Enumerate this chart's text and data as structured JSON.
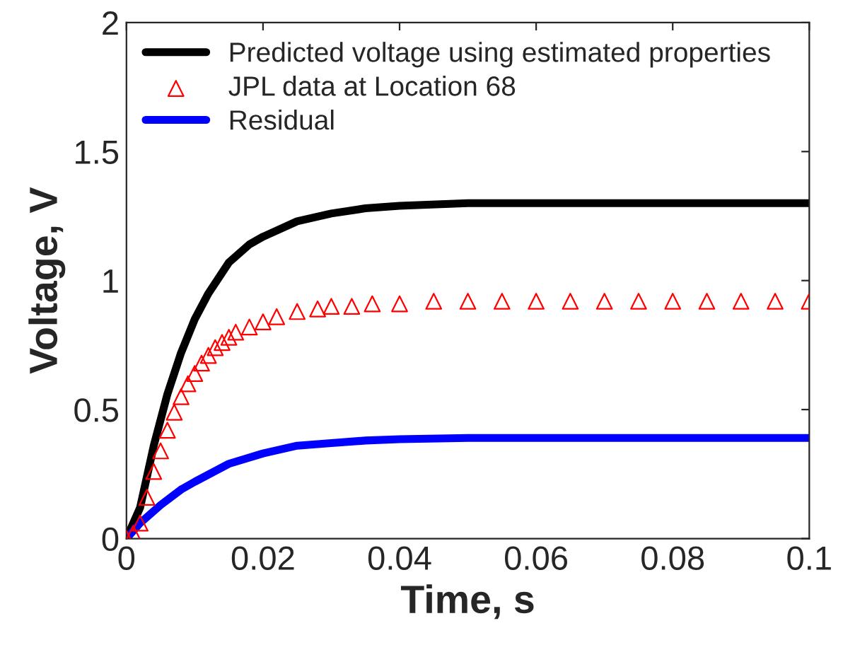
{
  "chart_data": {
    "type": "line",
    "xlabel": "Time, s",
    "ylabel": "Voltage, V",
    "xlim": [
      0,
      0.1
    ],
    "ylim": [
      0,
      2
    ],
    "xticks": [
      0,
      0.02,
      0.04,
      0.06,
      0.08,
      0.1
    ],
    "yticks": [
      0,
      0.5,
      1,
      1.5,
      2
    ],
    "legend": "top left",
    "series": [
      {
        "name": "Predicted voltage using estimated properties",
        "color": "#000000",
        "marker": "none",
        "x": [
          0,
          0.002,
          0.004,
          0.006,
          0.008,
          0.01,
          0.012,
          0.015,
          0.018,
          0.02,
          0.025,
          0.03,
          0.035,
          0.04,
          0.05,
          0.06,
          0.08,
          0.1
        ],
        "values": [
          0,
          0.12,
          0.36,
          0.56,
          0.72,
          0.85,
          0.95,
          1.07,
          1.14,
          1.17,
          1.23,
          1.26,
          1.28,
          1.29,
          1.3,
          1.3,
          1.3,
          1.3
        ]
      },
      {
        "name": "JPL data at Location 68",
        "color": "#ff0000",
        "type": "scatter",
        "marker": "triangle",
        "x": [
          0,
          0.001,
          0.002,
          0.003,
          0.004,
          0.005,
          0.006,
          0.007,
          0.008,
          0.009,
          0.01,
          0.011,
          0.012,
          0.013,
          0.014,
          0.015,
          0.016,
          0.018,
          0.02,
          0.022,
          0.025,
          0.028,
          0.03,
          0.033,
          0.036,
          0.04,
          0.045,
          0.05,
          0.055,
          0.06,
          0.065,
          0.07,
          0.075,
          0.08,
          0.085,
          0.09,
          0.095,
          0.1
        ],
        "values": [
          0,
          0.02,
          0.06,
          0.16,
          0.26,
          0.34,
          0.42,
          0.49,
          0.55,
          0.6,
          0.64,
          0.68,
          0.71,
          0.74,
          0.76,
          0.78,
          0.8,
          0.82,
          0.84,
          0.86,
          0.88,
          0.89,
          0.9,
          0.9,
          0.91,
          0.91,
          0.92,
          0.92,
          0.92,
          0.92,
          0.92,
          0.92,
          0.92,
          0.92,
          0.92,
          0.92,
          0.92,
          0.92
        ]
      },
      {
        "name": "Residual",
        "color": "#0000ff",
        "marker": "none",
        "x": [
          0,
          0.002,
          0.005,
          0.008,
          0.01,
          0.015,
          0.02,
          0.025,
          0.03,
          0.035,
          0.04,
          0.05,
          0.06,
          0.08,
          0.1
        ],
        "values": [
          0,
          0.06,
          0.13,
          0.19,
          0.22,
          0.29,
          0.33,
          0.36,
          0.37,
          0.38,
          0.385,
          0.39,
          0.39,
          0.39,
          0.39
        ]
      }
    ]
  }
}
